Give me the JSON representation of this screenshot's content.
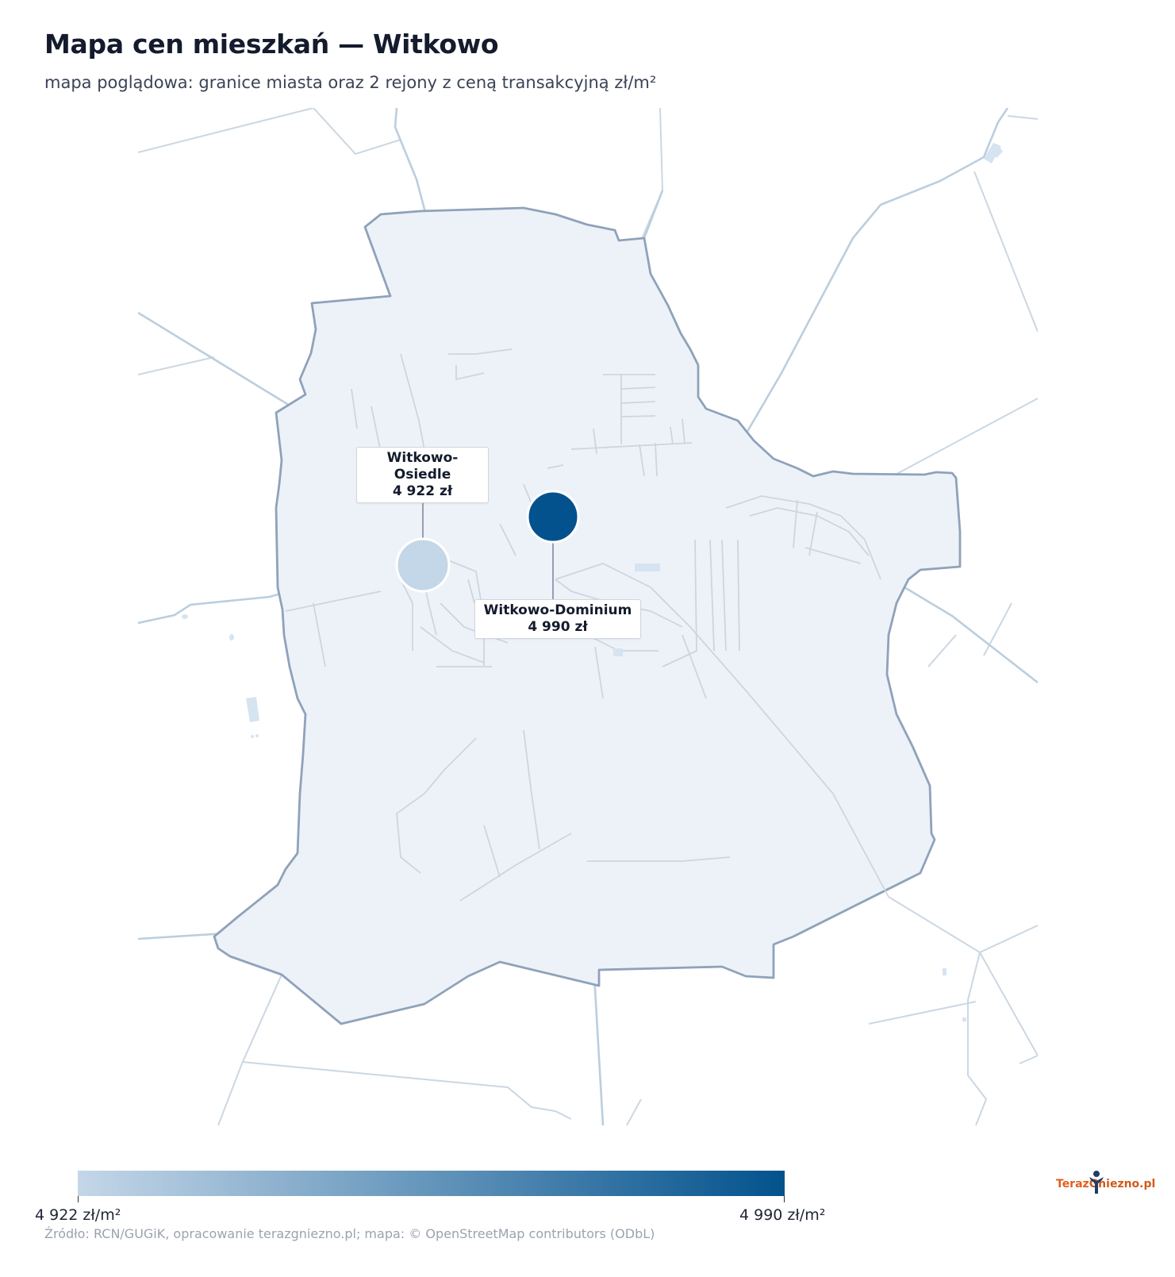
{
  "header": {
    "title": "Mapa cen mieszkań — Witkowo",
    "subtitle": "mapa poglądowa: granice miasta oraz 2 rejony z ceną transakcyjną zł/m²"
  },
  "regions": [
    {
      "name": "Witkowo-Osiedle",
      "price_label": "4 922 zł",
      "value": 4922,
      "color": "#c4d7e8"
    },
    {
      "name": "Witkowo-Dominium",
      "price_label": "4 990 zł",
      "value": 4990,
      "color": "#03528d"
    }
  ],
  "legend": {
    "min_label": "4 922 zł/m²",
    "max_label": "4 990 zł/m²",
    "min_value": 4922,
    "max_value": 4990,
    "color_min": "#c4d7e8",
    "color_max": "#03528d"
  },
  "footer": {
    "source": "Źródło: RCN/GUGiK, opracowanie terazgniezno.pl; mapa: © OpenStreetMap contributors (ODbL)"
  },
  "logo": {
    "text_part1": "Teraz",
    "text_part2": "Gniezno.pl",
    "icon": "person-icon"
  }
}
